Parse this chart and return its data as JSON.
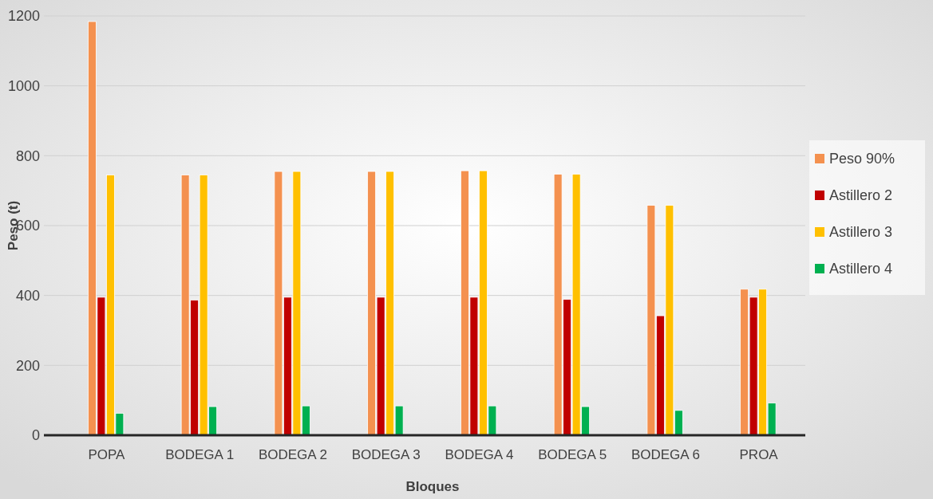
{
  "chart_data": {
    "type": "bar",
    "xlabel": "Bloques",
    "ylabel": "Peso (t)",
    "categories": [
      "POPA",
      "BODEGA 1",
      "BODEGA 2",
      "BODEGA 3",
      "BODEGA 4",
      "BODEGA 5",
      "BODEGA 6",
      "PROA"
    ],
    "series": [
      {
        "name": "Peso 90%",
        "color": "#f4914f",
        "values": [
          1184,
          745,
          755,
          755,
          757,
          747,
          658,
          418
        ]
      },
      {
        "name": "Astillero 2",
        "color": "#c00000",
        "values": [
          395,
          387,
          395,
          395,
          395,
          389,
          342,
          395
        ]
      },
      {
        "name": "Astillero 3",
        "color": "#ffc000",
        "values": [
          745,
          745,
          755,
          755,
          757,
          747,
          658,
          418
        ]
      },
      {
        "name": "Astillero 4",
        "color": "#00b050",
        "values": [
          63,
          82,
          84,
          84,
          84,
          82,
          71,
          92
        ]
      }
    ],
    "ylim": [
      0,
      1200
    ],
    "yticks": [
      0,
      200,
      400,
      600,
      800,
      1000,
      1200
    ],
    "grid": "y",
    "legend": "right"
  }
}
